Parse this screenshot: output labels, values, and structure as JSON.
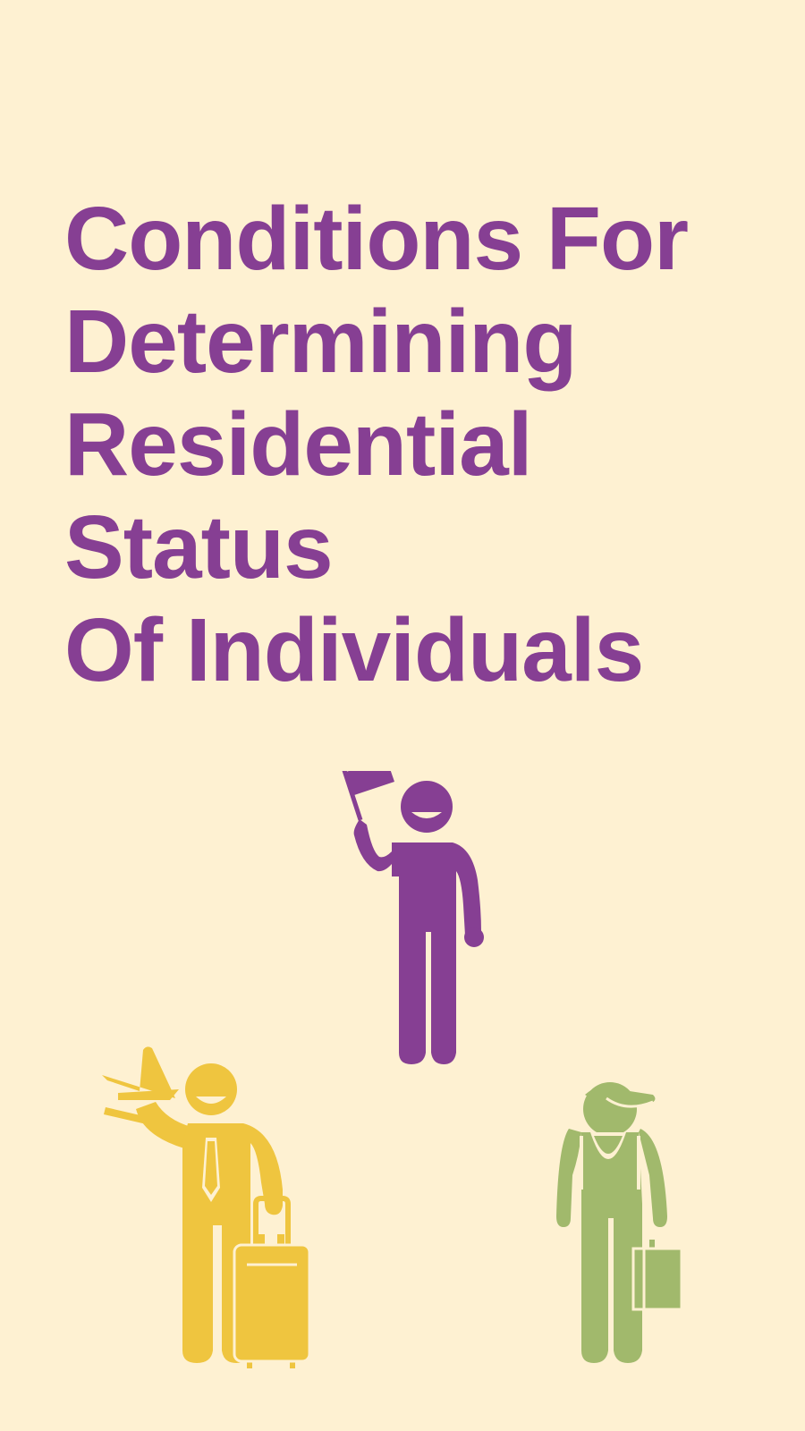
{
  "title": {
    "lines": [
      "Conditions For",
      "Determining",
      "Residential",
      "Status",
      "Of Individuals"
    ]
  },
  "illustrations": [
    {
      "name": "resident-with-flag-icon",
      "color": "#863F93"
    },
    {
      "name": "traveler-with-luggage-icon",
      "color": "#EFC53F"
    },
    {
      "name": "worker-with-briefcase-icon",
      "color": "#A1B96C"
    }
  ],
  "colors": {
    "background": "#FEF1D2",
    "title": "#863F93"
  }
}
